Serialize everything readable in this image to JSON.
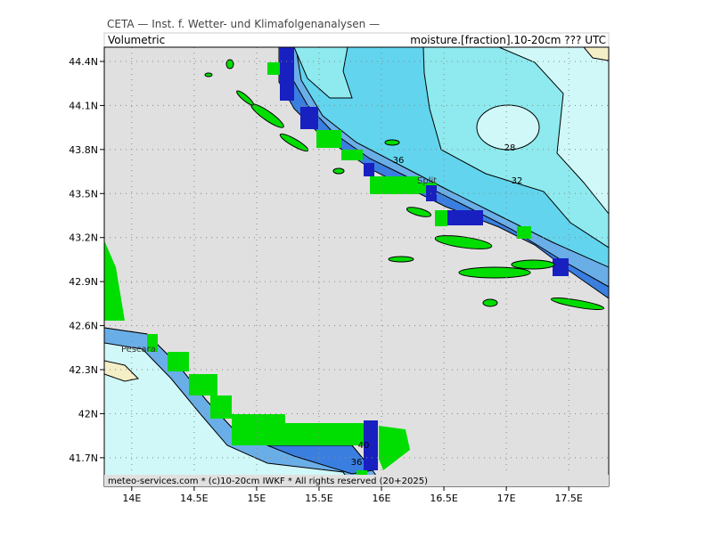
{
  "header": {
    "title": "CETA — Inst. f. Wetter- und Klimafolgenanalysen —",
    "subtitle": "Volumetric",
    "field": "moisture.[fraction].10-20cm ??? UTC"
  },
  "map": {
    "xlim": [
      13.78,
      17.82
    ],
    "ylim": [
      41.505,
      44.497
    ],
    "xticks": [
      {
        "value": 14,
        "label": "14E"
      },
      {
        "value": 14.5,
        "label": "14.5E"
      },
      {
        "value": 15,
        "label": "15E"
      },
      {
        "value": 15.5,
        "label": "15.5E"
      },
      {
        "value": 16,
        "label": "16E"
      },
      {
        "value": 16.5,
        "label": "16.5E"
      },
      {
        "value": 17,
        "label": "17E"
      },
      {
        "value": 17.5,
        "label": "17.5E"
      }
    ],
    "yticks": [
      {
        "value": 44.4,
        "label": "44.4N"
      },
      {
        "value": 44.1,
        "label": "44.1N"
      },
      {
        "value": 43.8,
        "label": "43.8N"
      },
      {
        "value": 43.5,
        "label": "43.5N"
      },
      {
        "value": 43.2,
        "label": "43.2N"
      },
      {
        "value": 42.9,
        "label": "42.9N"
      },
      {
        "value": 42.6,
        "label": "42.6N"
      },
      {
        "value": 42.3,
        "label": "42.3N"
      },
      {
        "value": 42,
        "label": "42N"
      },
      {
        "value": 41.7,
        "label": "41.7N"
      }
    ],
    "contour_labels": [
      "36",
      "32",
      "28",
      "40",
      "36"
    ],
    "places": [
      "Split",
      "Pescara"
    ]
  },
  "footer": "meteo-services.com * (c)10-20cm IWKF * All rights reserved (20+2025)"
}
